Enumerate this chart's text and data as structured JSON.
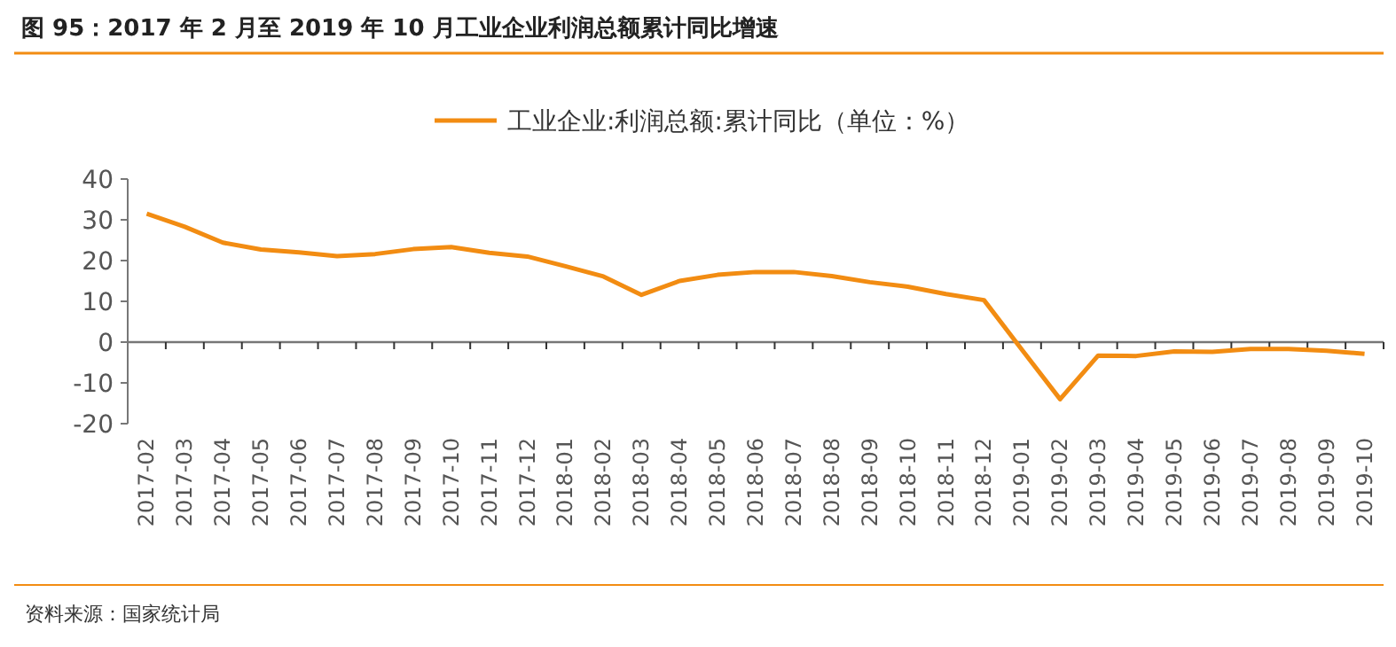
{
  "chart_data": {
    "type": "line",
    "title": "图 95：2017 年 2 月至 2019 年 10 月工业企业利润总额累计同比增速",
    "categories": [
      "2017-02",
      "2017-03",
      "2017-04",
      "2017-05",
      "2017-06",
      "2017-07",
      "2017-08",
      "2017-09",
      "2017-10",
      "2017-11",
      "2017-12",
      "2018-01",
      "2018-02",
      "2018-03",
      "2018-04",
      "2018-05",
      "2018-06",
      "2018-07",
      "2018-08",
      "2018-09",
      "2018-10",
      "2018-11",
      "2018-12",
      "2019-01",
      "2019-02",
      "2019-03",
      "2019-04",
      "2019-05",
      "2019-06",
      "2019-07",
      "2019-08",
      "2019-09",
      "2019-10"
    ],
    "series": [
      {
        "name": "工业企业:利润总额:累计同比（单位：%）",
        "color": "#f28c12",
        "values": [
          31.5,
          28.3,
          24.4,
          22.7,
          22.0,
          21.1,
          21.6,
          22.8,
          23.3,
          21.9,
          21.0,
          18.6,
          16.1,
          11.6,
          15.0,
          16.5,
          17.2,
          17.2,
          16.2,
          14.7,
          13.6,
          11.8,
          10.3,
          -1.9,
          -14.0,
          -3.3,
          -3.4,
          -2.3,
          -2.4,
          -1.7,
          -1.7,
          -2.1,
          -2.9
        ]
      }
    ],
    "ylim": [
      -20,
      40
    ],
    "yticks": [
      -20,
      -10,
      0,
      10,
      20,
      30,
      40
    ],
    "legend": "top",
    "marker": "none",
    "line_style": "solid",
    "annotations": [
      "资料来源：国家统计局"
    ]
  }
}
